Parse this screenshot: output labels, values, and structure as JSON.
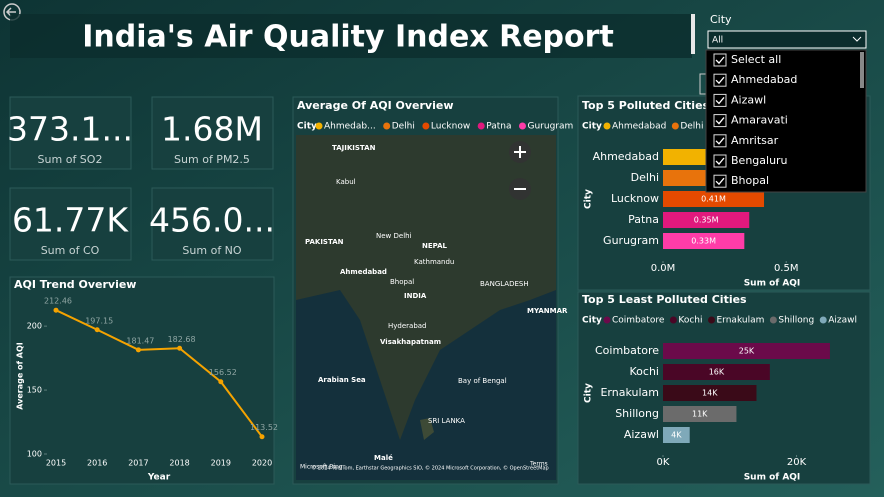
{
  "header": {
    "title": "India's Air Quality Index Report"
  },
  "slicer": {
    "label": "City",
    "selected": "All",
    "options": [
      "Select all",
      "Ahmedabad",
      "Aizawl",
      "Amaravati",
      "Amritsar",
      "Bengaluru",
      "Bhopal"
    ]
  },
  "cards": [
    {
      "value": "373.1...",
      "label": "Sum of SO2"
    },
    {
      "value": "1.68M",
      "label": "Sum of PM2.5"
    },
    {
      "value": "61.77K",
      "label": "Sum of CO"
    },
    {
      "value": "456.0...",
      "label": "Sum of NO"
    }
  ],
  "map": {
    "title": "Average Of AQI Overview",
    "legend_title": "City",
    "legend": [
      {
        "name": "Ahmedab...",
        "color": "#f2b200"
      },
      {
        "name": "Delhi",
        "color": "#e8730c"
      },
      {
        "name": "Lucknow",
        "color": "#e44a00"
      },
      {
        "name": "Patna",
        "color": "#e0197d"
      },
      {
        "name": "Gurugram",
        "color": "#ff3ca8"
      }
    ],
    "labels": [
      "TAJIKISTAN",
      "Kabul",
      "PAKISTAN",
      "New Delhi",
      "NEPAL",
      "Kathmandu",
      "Ahmedabad",
      "Bhopal",
      "INDIA",
      "BANGLADESH",
      "MYANMAR",
      "Hyderabad",
      "Visakhapatnam",
      "Bay of Bengal",
      "Arabian Sea",
      "SRI LANKA",
      "Malé"
    ],
    "attribution": "© 2024 TomTom, Earthstar Geographics SIO, © 2024 Microsoft Corporation, © OpenStreetMap",
    "provider": "Microsoft Bing",
    "terms": "Terms"
  },
  "chart_data": [
    {
      "type": "line",
      "title": "AQI Trend Overview",
      "x_label": "Year",
      "y_label": "Average of AQI",
      "categories": [
        "2015",
        "2016",
        "2017",
        "2018",
        "2019",
        "2020"
      ],
      "values": [
        212.46,
        197.15,
        181.47,
        182.68,
        156.52,
        113.52
      ],
      "color": "#f5a300",
      "ylim": [
        100,
        222
      ],
      "yticks": [
        100,
        150,
        200
      ]
    },
    {
      "type": "hbar",
      "title": "Top 5 Polluted Cities",
      "legend_title": "City",
      "x_label": "Sum of AQI",
      "y_label": "City",
      "categories": [
        "Ahmedabad",
        "Delhi",
        "Lucknow",
        "Patna",
        "Gurugram"
      ],
      "values": [
        670000,
        560000,
        410000,
        350000,
        330000
      ],
      "value_labels": [
        null,
        null,
        "0.41M",
        "0.35M",
        "0.33M"
      ],
      "colors": [
        "#f2b200",
        "#e8730c",
        "#e44a00",
        "#e0197d",
        "#ff3ca8"
      ],
      "xlim": [
        0,
        840000
      ],
      "xticks": [
        {
          "value": 0,
          "label": "0.0M"
        },
        {
          "value": 500000,
          "label": "0.5M"
        }
      ]
    },
    {
      "type": "hbar",
      "title": "Top 5 Least Polluted Cities",
      "legend_title": "City",
      "x_label": "Sum of AQI",
      "y_label": "City",
      "categories": [
        "Coimbatore",
        "Kochi",
        "Ernakulam",
        "Shillong",
        "Aizawl"
      ],
      "values": [
        25000,
        16000,
        14000,
        11000,
        4000
      ],
      "value_labels": [
        "25K",
        "16K",
        "14K",
        "11K",
        "4K"
      ],
      "colors": [
        "#6b0a4a",
        "#4a0626",
        "#3a0a18",
        "#6b6b6b",
        "#7fa9b9"
      ],
      "xlim": [
        0,
        31000
      ],
      "xticks": [
        {
          "value": 0,
          "label": "0K"
        },
        {
          "value": 20000,
          "label": "20K"
        }
      ]
    }
  ]
}
